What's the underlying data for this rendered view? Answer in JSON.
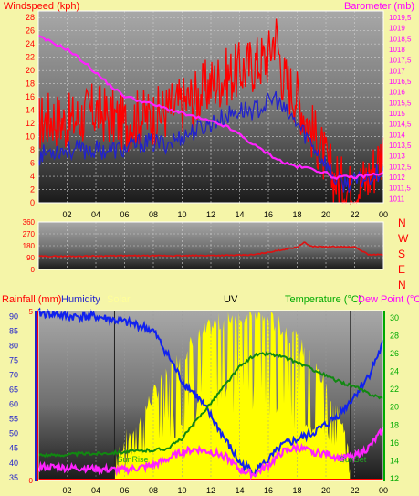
{
  "chart_data": [
    {
      "type": "line",
      "title": "",
      "left_axis_label": "Windspeed (kph)",
      "right_axis_label": "Barometer (mb)",
      "left_ticks": [
        "0",
        "2",
        "4",
        "6",
        "8",
        "10",
        "12",
        "14",
        "16",
        "18",
        "20",
        "22",
        "24",
        "26",
        "28"
      ],
      "right_ticks": [
        "1011",
        "1011,5",
        "1012",
        "1012,5",
        "1013",
        "1013,5",
        "1014",
        "1014,5",
        "1015",
        "1015,5",
        "1016",
        "1016,5",
        "1017",
        "1017,5",
        "1018",
        "1018,5",
        "1019",
        "1019,5"
      ],
      "x_ticks": [
        "02",
        "04",
        "06",
        "08",
        "10",
        "12",
        "14",
        "16",
        "18",
        "20",
        "22",
        "00"
      ],
      "xlim_hours": [
        0,
        24
      ],
      "ylim_left": [
        0,
        29
      ],
      "ylim_right": [
        1010.8,
        1019.8
      ],
      "colors": {
        "gust": "#ff0000",
        "wind": "#2222cc",
        "barometer": "#ff22ff",
        "left_label": "#ff0000",
        "right_label": "#ff00ff"
      },
      "series": [
        {
          "name": "",
          "axis": "left",
          "color": "#ff0000",
          "x": [
            0,
            1,
            2,
            3,
            4,
            5,
            6,
            7,
            8,
            9,
            10,
            11,
            12,
            13,
            14,
            15,
            16,
            16.5,
            17,
            18,
            19,
            19.5,
            20,
            20.5,
            21,
            21.5,
            22,
            22.5,
            23,
            23.5,
            24
          ],
          "y": [
            12,
            13,
            12,
            13,
            14,
            13,
            12,
            13,
            13,
            14,
            15,
            16,
            18,
            19,
            20,
            21,
            22,
            26,
            19,
            16,
            11,
            9,
            6,
            4,
            3,
            2,
            2,
            3,
            4,
            6,
            8
          ]
        },
        {
          "name": "",
          "axis": "left",
          "color": "#2222cc",
          "x": [
            0,
            1,
            2,
            3,
            4,
            5,
            6,
            7,
            8,
            9,
            10,
            11,
            12,
            13,
            14,
            15,
            16,
            16.5,
            17,
            18,
            19,
            20,
            20.5,
            21,
            22,
            23,
            24
          ],
          "y": [
            7,
            8,
            8,
            8,
            8,
            8,
            8,
            9,
            9,
            9,
            10,
            11,
            12,
            13,
            14,
            14,
            15,
            16,
            14,
            12,
            9,
            6,
            4,
            3,
            3,
            4,
            5
          ]
        },
        {
          "name": "",
          "axis": "right",
          "color": "#ff22ff",
          "x": [
            0,
            1,
            2,
            3,
            4,
            5,
            6,
            7,
            8,
            9,
            10,
            11,
            12,
            13,
            14,
            15,
            16,
            17,
            18,
            19,
            20,
            20.5,
            21,
            22,
            23,
            24
          ],
          "y": [
            1018.6,
            1018.3,
            1018.0,
            1017.5,
            1016.9,
            1016.3,
            1015.8,
            1015.6,
            1015.4,
            1015.2,
            1015.0,
            1014.8,
            1014.6,
            1014.4,
            1014.0,
            1013.5,
            1013.1,
            1012.7,
            1012.5,
            1012.4,
            1012.2,
            1012.0,
            1012.0,
            1012.0,
            1012.1,
            1012.2
          ]
        }
      ]
    },
    {
      "type": "line",
      "title": "",
      "left_ticks": [
        "0",
        "90",
        "180",
        "270",
        "360"
      ],
      "right_letters": [
        "N",
        "W",
        "S",
        "E",
        "N"
      ],
      "x_ticks": [
        "02",
        "04",
        "06",
        "08",
        "10",
        "12",
        "14",
        "16",
        "18",
        "20",
        "22",
        "00"
      ],
      "xlim_hours": [
        0,
        24
      ],
      "ylim": [
        0,
        360
      ],
      "colors": {
        "direction": "#dd1111",
        "letters": "#ff0000"
      },
      "series": [
        {
          "name": "",
          "color": "#dd1111",
          "x": [
            0,
            2,
            4,
            6,
            8,
            10,
            12,
            14,
            15,
            16,
            17,
            18,
            18.5,
            19,
            20,
            21,
            22,
            23,
            24
          ],
          "y": [
            100,
            100,
            102,
            104,
            104,
            104,
            106,
            108,
            112,
            130,
            150,
            170,
            205,
            175,
            172,
            172,
            170,
            112,
            112
          ]
        }
      ]
    },
    {
      "type": "line",
      "title": "",
      "labels": {
        "rain": "Rainfall (mm)",
        "humidity": "Humidity",
        "solar": "Solar",
        "uv": "UV",
        "temperature": "Temperature (°C)",
        "dewpoint": "Dew Point (°C)",
        "sunrise": "SunRise",
        "sunset": "SunSet"
      },
      "label_colors": {
        "rain": "#ff0000",
        "humidity": "#2222cc",
        "solar": "#ffff99",
        "uv": "#000000",
        "temperature": "#00aa00",
        "dewpoint": "#ff00ff"
      },
      "rain_ticks": [
        "0",
        "5"
      ],
      "humidity_ticks": [
        "35",
        "40",
        "45",
        "50",
        "55",
        "60",
        "65",
        "70",
        "75",
        "80",
        "85",
        "90"
      ],
      "temp_ticks": [
        "12",
        "14",
        "16",
        "18",
        "20",
        "22",
        "24",
        "26",
        "28",
        "30"
      ],
      "x_ticks": [
        "02",
        "04",
        "06",
        "08",
        "10",
        "12",
        "14",
        "16",
        "18",
        "20",
        "22",
        "00"
      ],
      "xlim_hours": [
        0,
        24
      ],
      "sunrise_hour": 5.3,
      "sunset_hour": 21.7,
      "ylim_humidity": [
        34,
        92
      ],
      "ylim_temp": [
        11.8,
        30.8
      ],
      "colors": {
        "humidity": "#1122ee",
        "temperature": "#118811",
        "dewpoint": "#ff22ff",
        "solar": "#ffff00",
        "rain": "#ff0000"
      },
      "series": [
        {
          "name": "Humidity",
          "color": "#1122ee",
          "x": [
            0,
            1,
            2,
            3,
            4,
            5,
            6,
            7,
            8,
            9,
            10,
            11,
            12,
            13,
            14,
            15,
            16,
            17,
            18,
            19,
            20,
            21,
            22,
            23,
            24
          ],
          "y": [
            91,
            91,
            90,
            90,
            90,
            89,
            88,
            87,
            85,
            77,
            68,
            63,
            56,
            48,
            40,
            37,
            41,
            46,
            48,
            50,
            53,
            57,
            63,
            70,
            81
          ]
        },
        {
          "name": "Temperature (°C)",
          "color": "#118811",
          "x": [
            0,
            1,
            2,
            3,
            4,
            5,
            6,
            7,
            8,
            9,
            10,
            11,
            12,
            13,
            14,
            15,
            16,
            17,
            18,
            19,
            20,
            21,
            22,
            23,
            24
          ],
          "y": [
            14.7,
            14.6,
            14.7,
            14.8,
            14.8,
            14.9,
            15.0,
            15.1,
            15.2,
            15.4,
            16.5,
            18.5,
            20.5,
            22.5,
            24.5,
            25.8,
            26.0,
            25.6,
            25.0,
            24.3,
            23.5,
            22.8,
            22.3,
            21.5,
            21.0
          ]
        },
        {
          "name": "Dew Point (°C)",
          "color": "#ff22ff",
          "x": [
            0,
            1,
            2,
            3,
            4,
            5,
            6,
            7,
            8,
            9,
            10,
            11,
            12,
            13,
            14,
            15,
            16,
            17,
            18,
            19,
            20,
            21,
            22,
            23,
            24
          ],
          "y": [
            13.3,
            13.3,
            13.2,
            13.2,
            13.1,
            13.0,
            13.0,
            13.2,
            13.5,
            14.2,
            15.0,
            15.3,
            15.0,
            14.5,
            13.0,
            12.5,
            13.5,
            15.0,
            15.5,
            15.0,
            14.8,
            14.3,
            14.5,
            15.5,
            17.5
          ]
        },
        {
          "name": "Solar",
          "color": "#ffff00",
          "x": [
            5.3,
            6,
            7,
            8,
            9,
            10,
            11,
            12,
            13,
            14,
            15,
            16,
            17,
            18,
            19,
            20,
            21,
            21.7
          ],
          "y": [
            0.05,
            0.15,
            0.28,
            0.42,
            0.55,
            0.66,
            0.75,
            0.82,
            0.87,
            0.9,
            0.9,
            0.87,
            0.82,
            0.74,
            0.62,
            0.48,
            0.3,
            0.05
          ]
        }
      ]
    }
  ]
}
